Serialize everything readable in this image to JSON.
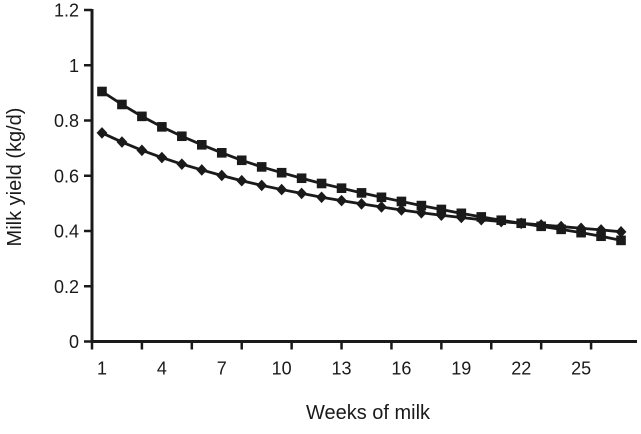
{
  "chart_data": {
    "type": "line",
    "title": "",
    "xlabel": "Weeks of milk",
    "ylabel": "Milk yield (kg/d)",
    "x": [
      1,
      2,
      3,
      4,
      5,
      6,
      7,
      8,
      9,
      10,
      11,
      12,
      13,
      14,
      15,
      16,
      17,
      18,
      19,
      20,
      21,
      22,
      23,
      24,
      25,
      26,
      27
    ],
    "series": [
      {
        "name": "series-squares",
        "marker": "square",
        "values": [
          0.905,
          0.858,
          0.815,
          0.777,
          0.743,
          0.712,
          0.683,
          0.656,
          0.632,
          0.611,
          0.591,
          0.572,
          0.555,
          0.538,
          0.522,
          0.507,
          0.492,
          0.478,
          0.464,
          0.451,
          0.439,
          0.428,
          0.417,
          0.406,
          0.394,
          0.381,
          0.366
        ]
      },
      {
        "name": "series-diamonds",
        "marker": "diamond",
        "values": [
          0.755,
          0.722,
          0.692,
          0.666,
          0.642,
          0.621,
          0.601,
          0.582,
          0.565,
          0.55,
          0.536,
          0.522,
          0.51,
          0.498,
          0.487,
          0.476,
          0.466,
          0.457,
          0.449,
          0.441,
          0.434,
          0.428,
          0.422,
          0.416,
          0.41,
          0.404,
          0.397
        ]
      }
    ],
    "xlim": [
      0.5,
      27.8
    ],
    "ylim": [
      0,
      1.2
    ],
    "y_ticks": [
      0,
      0.2,
      0.4,
      0.6,
      0.8,
      1,
      1.2
    ],
    "y_tick_labels": [
      "0",
      "0.2",
      "0.4",
      "0.6",
      "0.8",
      "1",
      "1.2"
    ],
    "x_tick_positions": [
      0.5,
      3,
      5.5,
      8,
      10.5,
      13,
      15.5,
      18,
      20.5,
      23,
      25.5
    ],
    "x_tick_label_weeks": [
      1,
      4,
      7,
      10,
      13,
      16,
      19,
      22,
      25
    ],
    "grid": false,
    "legend": "none",
    "line_color": "#1a1a1a",
    "background_color": "#ffffff"
  }
}
